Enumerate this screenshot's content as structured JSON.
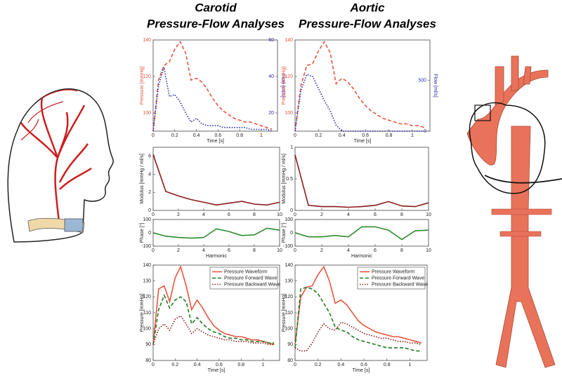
{
  "headings": [
    [
      "Carotid",
      "Pressure-Flow Analyses"
    ],
    [
      "Aortic",
      "Pressure-Flow Analyses"
    ]
  ],
  "chart_data": [
    {
      "type": "line",
      "xlabel": "Time [s]",
      "ylabel": "Pressure [mmHg]",
      "y2label": "Flow [ml/s]",
      "x": [
        0,
        0.05,
        0.1,
        0.15,
        0.2,
        0.25,
        0.3,
        0.35,
        0.4,
        0.45,
        0.5,
        0.55,
        0.6,
        0.65,
        0.7,
        0.75,
        0.8,
        0.85,
        0.9,
        0.95,
        1.0,
        1.05,
        1.1
      ],
      "xlim": [
        0,
        1.15
      ],
      "xticks": [
        0,
        0.2,
        0.4,
        0.6,
        0.8,
        1
      ],
      "ylim": [
        90,
        140
      ],
      "yticks": [
        100,
        120,
        140
      ],
      "y2lim": [
        10,
        60
      ],
      "y2ticks": [
        20,
        40,
        60
      ],
      "series": [
        {
          "color": "#e8553f",
          "dash": "dashed",
          "values": [
            90,
            118,
            126,
            128,
            135,
            139,
            133,
            118,
            119,
            117,
            113,
            108,
            104,
            101,
            99,
            97,
            96,
            95,
            95,
            94,
            93,
            92,
            91
          ]
        },
        {
          "color": "#2b2bb0",
          "dash": "dotted",
          "axis": "y2",
          "values": [
            10,
            35,
            45,
            29,
            30,
            26,
            20,
            15,
            17,
            14,
            13,
            13,
            13,
            12,
            12,
            12,
            12,
            12,
            11,
            11,
            11,
            11,
            10
          ]
        }
      ]
    },
    {
      "type": "line",
      "xlabel": "Time [s]",
      "ylabel": "Pressure [mmHg]",
      "y2label": "Flow [ml/s]",
      "x": [
        0,
        0.05,
        0.1,
        0.15,
        0.2,
        0.25,
        0.3,
        0.35,
        0.4,
        0.45,
        0.5,
        0.55,
        0.6,
        0.65,
        0.7,
        0.75,
        0.8,
        0.85,
        0.9,
        0.95,
        1.0,
        1.05,
        1.1
      ],
      "xlim": [
        0,
        1.15
      ],
      "xticks": [
        0,
        0.2,
        0.4,
        0.6,
        0.8,
        1
      ],
      "ylim": [
        90,
        140
      ],
      "yticks": [
        100,
        120,
        140
      ],
      "y2lim": [
        0,
        900
      ],
      "y2ticks": [
        0,
        500
      ],
      "series": [
        {
          "color": "#e8553f",
          "dash": "dashed",
          "values": [
            90,
            115,
            126,
            127,
            134,
            139,
            133,
            116,
            119,
            117,
            113,
            108,
            104,
            101,
            99,
            97,
            96,
            95,
            94,
            94,
            93,
            93,
            92
          ]
        },
        {
          "color": "#2b2bb0",
          "dash": "dotted",
          "axis": "y2",
          "values": [
            0,
            400,
            560,
            540,
            420,
            300,
            200,
            60,
            0,
            0,
            0,
            0,
            0,
            0,
            0,
            0,
            0,
            0,
            0,
            0,
            0,
            0,
            0
          ]
        }
      ]
    },
    {
      "type": "line",
      "ylabel": "Modulus [mmHg / ml/s]",
      "x": [
        0,
        1,
        2,
        3,
        4,
        5,
        6,
        7,
        8,
        9,
        10
      ],
      "xlim": [
        0,
        10
      ],
      "xticks": [
        0,
        2,
        4,
        6,
        8,
        10
      ],
      "ylim": [
        0,
        7
      ],
      "yticks": [
        0,
        2,
        4,
        6
      ],
      "series": [
        {
          "color": "#8b1a1a",
          "dash": "solid",
          "values": [
            6.2,
            2.1,
            1.6,
            1.2,
            0.9,
            0.6,
            0.8,
            1.0,
            0.7,
            0.6,
            0.9
          ]
        }
      ]
    },
    {
      "type": "line",
      "ylabel": "Modulus [mmHg / ml/s]",
      "x": [
        0,
        1,
        2,
        3,
        4,
        5,
        6,
        7,
        8,
        9,
        10
      ],
      "xlim": [
        0,
        10
      ],
      "xticks": [
        0,
        2,
        4,
        6,
        8,
        10
      ],
      "ylim": [
        0,
        1
      ],
      "yticks": [
        0,
        0.5,
        1
      ],
      "series": [
        {
          "color": "#8b1a1a",
          "dash": "solid",
          "values": [
            0.88,
            0.08,
            0.06,
            0.06,
            0.05,
            0.06,
            0.08,
            0.14,
            0.07,
            0.06,
            0.12
          ]
        }
      ]
    },
    {
      "type": "line",
      "xlabel": "Harmonic",
      "ylabel": "Phase [°]",
      "x": [
        0,
        1,
        2,
        3,
        4,
        5,
        6,
        7,
        8,
        9,
        10
      ],
      "xlim": [
        0,
        10
      ],
      "xticks": [
        0,
        2,
        4,
        6,
        8,
        10
      ],
      "ylim": [
        -100,
        100
      ],
      "yticks": [
        -100,
        0,
        100
      ],
      "series": [
        {
          "color": "#2e8b2e",
          "dash": "solid",
          "values": [
            0,
            -25,
            -35,
            -40,
            -35,
            30,
            10,
            -20,
            -15,
            35,
            20
          ]
        }
      ]
    },
    {
      "type": "line",
      "xlabel": "Harmonic",
      "ylabel": "Phase [°]",
      "x": [
        0,
        1,
        2,
        3,
        4,
        5,
        6,
        7,
        8,
        9,
        10
      ],
      "xlim": [
        0,
        10
      ],
      "xticks": [
        0,
        2,
        4,
        6,
        8,
        10
      ],
      "ylim": [
        -100,
        100
      ],
      "yticks": [
        -100,
        0,
        100
      ],
      "series": [
        {
          "color": "#2e8b2e",
          "dash": "solid",
          "values": [
            0,
            -30,
            -30,
            -20,
            -30,
            45,
            45,
            20,
            -50,
            15,
            20
          ]
        }
      ]
    },
    {
      "type": "line",
      "xlabel": "Time [s]",
      "ylabel": "Pressure [mmHg]",
      "legend": "upper right",
      "x": [
        0,
        0.05,
        0.1,
        0.15,
        0.2,
        0.25,
        0.3,
        0.35,
        0.4,
        0.45,
        0.5,
        0.55,
        0.6,
        0.65,
        0.7,
        0.75,
        0.8,
        0.85,
        0.9,
        0.95,
        1.0,
        1.05,
        1.1
      ],
      "xlim": [
        0,
        1.15
      ],
      "xticks": [
        0,
        0.2,
        0.4,
        0.6,
        0.8,
        1
      ],
      "ylim": [
        80,
        140
      ],
      "yticks": [
        80,
        90,
        100,
        110,
        120,
        130,
        140
      ],
      "series": [
        {
          "name": "Pressure Waveform",
          "color": "#e8553f",
          "dash": "solid",
          "values": [
            90,
            125,
            127,
            117,
            132,
            139,
            127,
            112,
            118,
            113,
            107,
            102,
            99,
            97,
            96,
            95,
            95,
            94,
            93,
            93,
            92,
            91,
            90
          ]
        },
        {
          "name": "Pressure Forward Wave",
          "color": "#1f7a1f",
          "dash": "dashed",
          "values": [
            90,
            112,
            121,
            113,
            118,
            120,
            117,
            103,
            107,
            103,
            100,
            98,
            97,
            95,
            94,
            94,
            93,
            93,
            92,
            92,
            92,
            91,
            91
          ]
        },
        {
          "name": "Pressure Backward Wave",
          "color": "#8b1a1a",
          "dash": "dotted",
          "values": [
            90,
            100,
            103,
            99,
            106,
            108,
            103,
            97,
            100,
            98,
            96,
            95,
            94,
            93,
            93,
            92,
            92,
            92,
            91,
            91,
            91,
            90,
            90
          ]
        }
      ]
    },
    {
      "type": "line",
      "xlabel": "Time [s]",
      "ylabel": "Pressure [mmHg]",
      "legend": "upper right",
      "x": [
        0,
        0.05,
        0.1,
        0.15,
        0.2,
        0.25,
        0.3,
        0.35,
        0.4,
        0.45,
        0.5,
        0.55,
        0.6,
        0.65,
        0.7,
        0.75,
        0.8,
        0.85,
        0.9,
        0.95,
        1.0,
        1.05,
        1.1
      ],
      "xlim": [
        0,
        1.15
      ],
      "xticks": [
        0,
        0.2,
        0.4,
        0.6,
        0.8,
        1
      ],
      "ylim": [
        80,
        140
      ],
      "yticks": [
        80,
        90,
        100,
        110,
        120,
        130,
        140
      ],
      "series": [
        {
          "name": "Pressure Waveform",
          "color": "#e8553f",
          "dash": "solid",
          "values": [
            90,
            120,
            126,
            127,
            134,
            139,
            130,
            116,
            118,
            115,
            110,
            105,
            102,
            100,
            98,
            97,
            96,
            95,
            95,
            94,
            93,
            92,
            91
          ]
        },
        {
          "name": "Pressure Forward Wave",
          "color": "#1f7a1f",
          "dash": "dashed",
          "values": [
            88,
            125,
            126,
            125,
            122,
            116,
            110,
            101,
            99,
            98,
            95,
            93,
            92,
            91,
            90,
            89,
            88,
            88,
            88,
            88,
            87,
            86,
            86
          ]
        },
        {
          "name": "Pressure Backward Wave",
          "color": "#8b1a1a",
          "dash": "dotted",
          "values": [
            88,
            86,
            86,
            91,
            98,
            103,
            100,
            99,
            104,
            103,
            101,
            99,
            97,
            96,
            95,
            94,
            94,
            93,
            92,
            92,
            91,
            91,
            90
          ]
        }
      ]
    }
  ]
}
